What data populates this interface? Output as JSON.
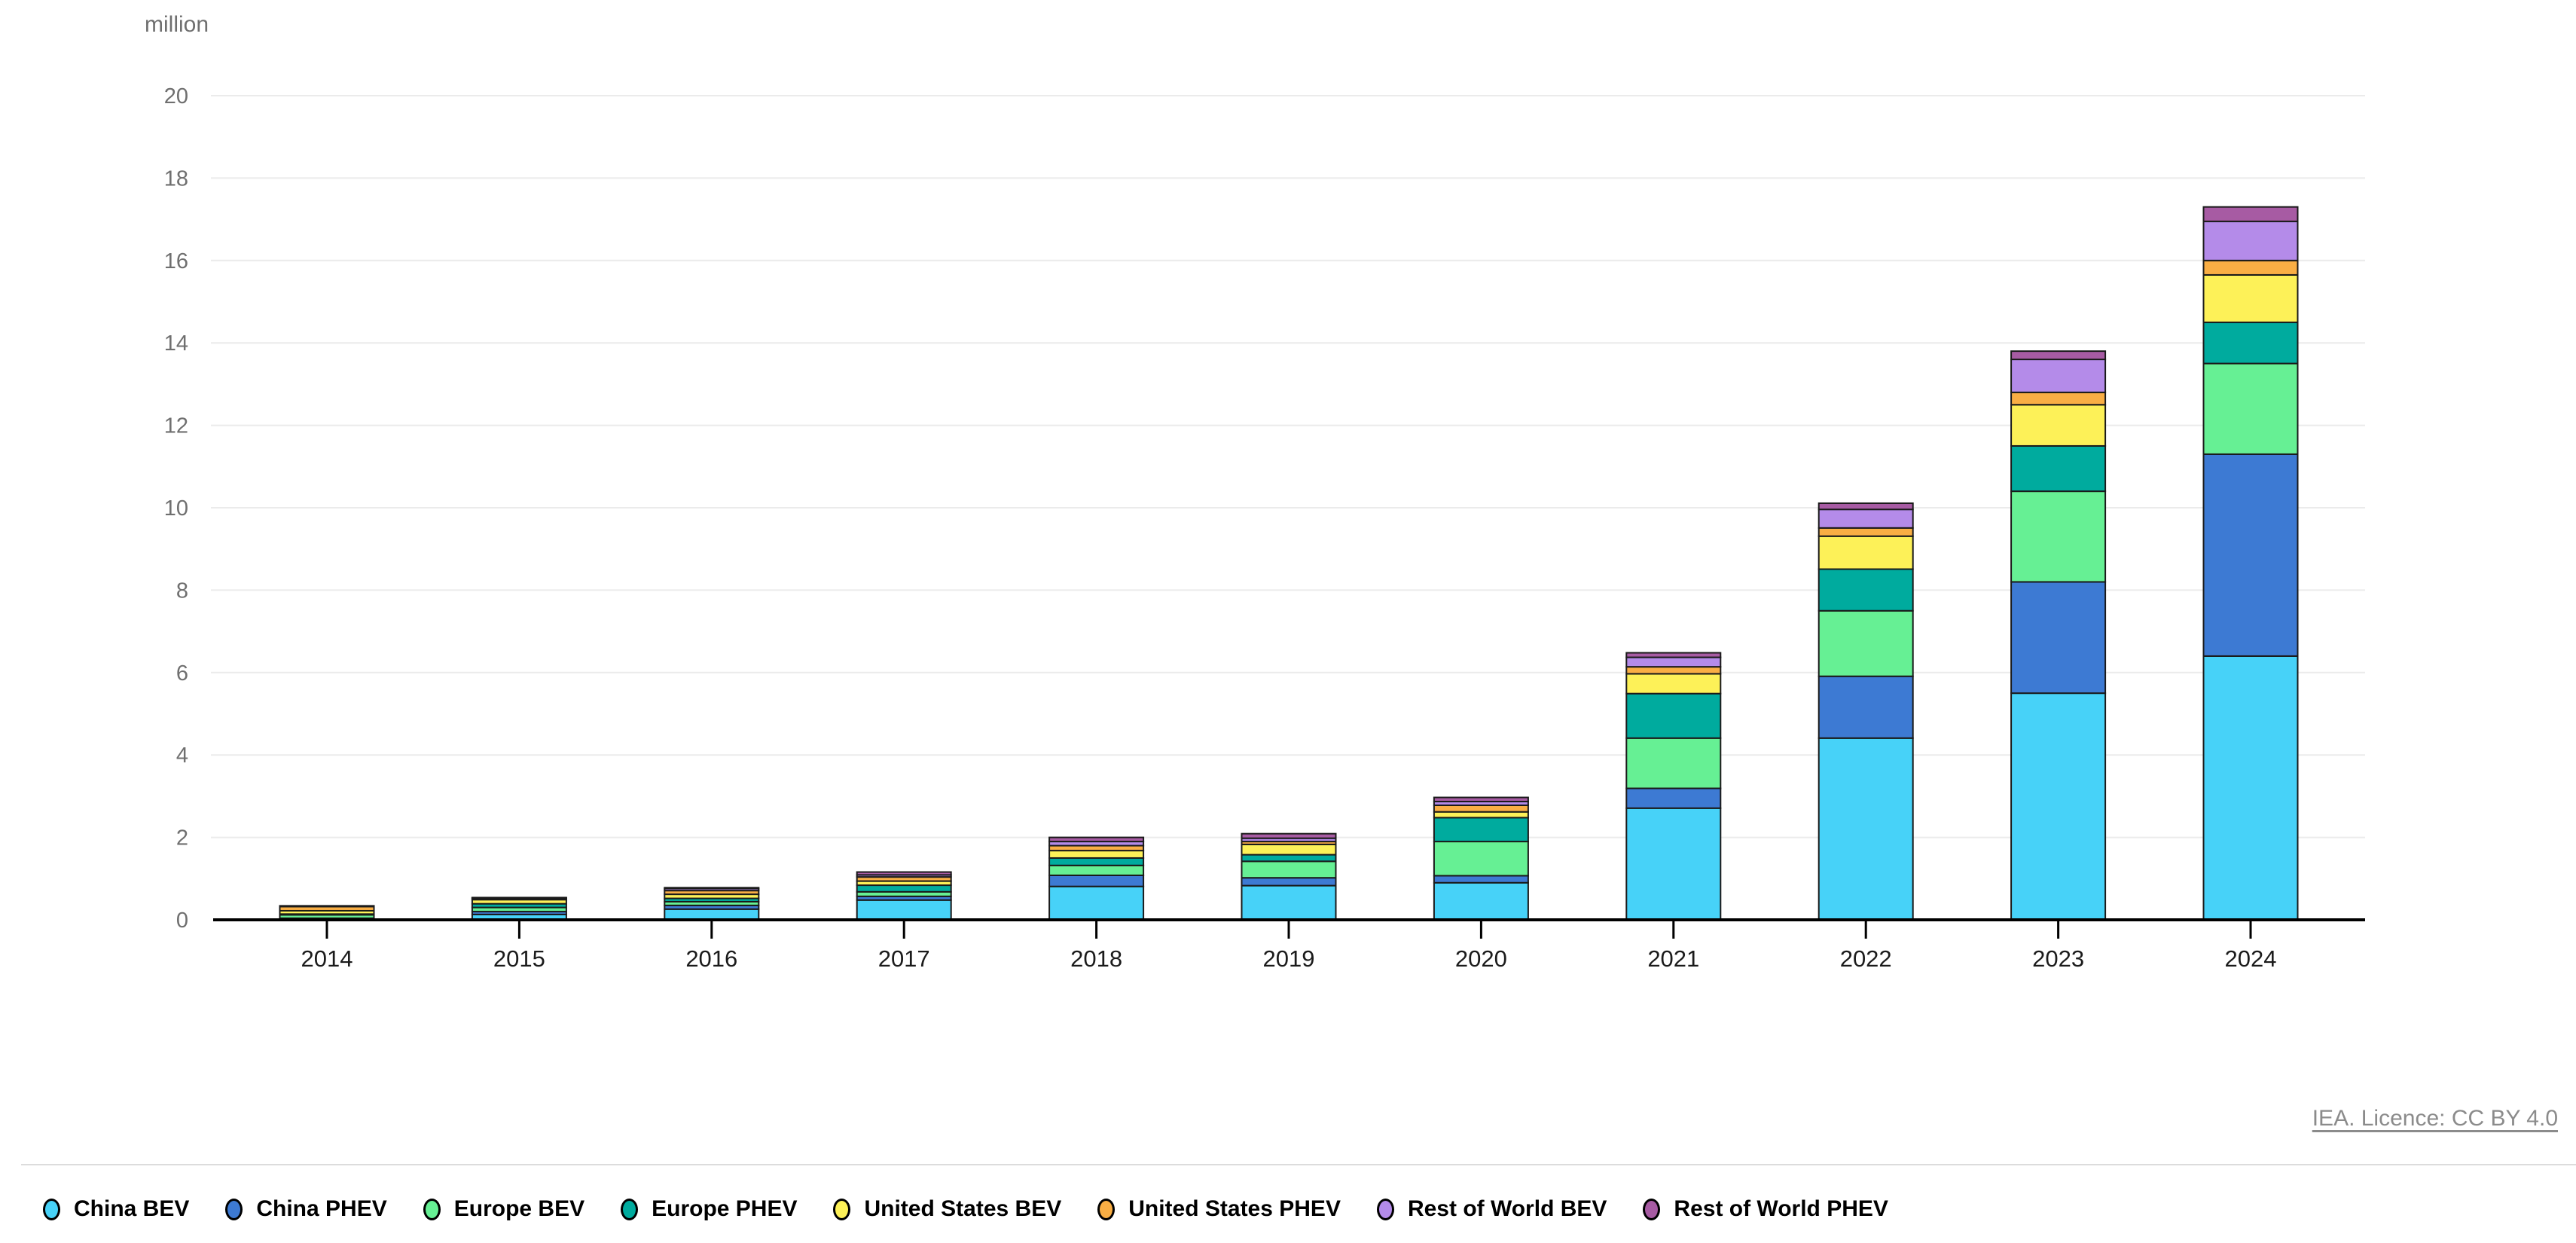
{
  "header": {
    "unit_label": "million"
  },
  "footer": {
    "licence_text": "IEA. Licence: CC BY 4.0"
  },
  "chart_data": {
    "type": "bar",
    "stacked": true,
    "title": "",
    "unit_label": "million",
    "categories": [
      "2014",
      "2015",
      "2016",
      "2017",
      "2018",
      "2019",
      "2020",
      "2021",
      "2022",
      "2023",
      "2024"
    ],
    "series": [
      {
        "name": "China BEV",
        "color": "#47D2F8",
        "values": [
          0.03,
          0.13,
          0.26,
          0.48,
          0.81,
          0.83,
          0.9,
          2.71,
          4.41,
          5.5,
          6.4
        ]
      },
      {
        "name": "China PHEV",
        "color": "#3D7AD3",
        "values": [
          0.01,
          0.07,
          0.09,
          0.09,
          0.27,
          0.19,
          0.17,
          0.48,
          1.5,
          2.7,
          4.9
        ]
      },
      {
        "name": "Europe BEV",
        "color": "#66F094",
        "values": [
          0.08,
          0.1,
          0.09,
          0.11,
          0.24,
          0.4,
          0.83,
          1.22,
          1.59,
          2.2,
          2.2
        ]
      },
      {
        "name": "Europe PHEV",
        "color": "#00AB9E",
        "values": [
          0.02,
          0.09,
          0.08,
          0.16,
          0.18,
          0.16,
          0.58,
          1.08,
          1.01,
          1.1,
          1.0
        ]
      },
      {
        "name": "United States BEV",
        "color": "#FDF158",
        "values": [
          0.08,
          0.1,
          0.1,
          0.1,
          0.18,
          0.25,
          0.14,
          0.48,
          0.8,
          1.0,
          1.15
        ]
      },
      {
        "name": "United States PHEV",
        "color": "#F9AE44",
        "values": [
          0.1,
          0.03,
          0.09,
          0.1,
          0.12,
          0.07,
          0.16,
          0.17,
          0.2,
          0.3,
          0.35
        ]
      },
      {
        "name": "Rest of World BEV",
        "color": "#B48BE9",
        "values": [
          0.01,
          0.01,
          0.05,
          0.05,
          0.1,
          0.08,
          0.09,
          0.23,
          0.45,
          0.8,
          0.95
        ]
      },
      {
        "name": "Rest of World PHEV",
        "color": "#A75BA3",
        "values": [
          0.01,
          0.01,
          0.02,
          0.07,
          0.1,
          0.11,
          0.1,
          0.11,
          0.15,
          0.2,
          0.35
        ]
      }
    ],
    "xlabel": "",
    "ylabel": "million",
    "ylim": [
      0,
      20
    ],
    "ytick_step": 2,
    "grid": "horizontal",
    "gridline_color": "#EBEBEB",
    "axis_color": "#000000",
    "segment_stroke_color": "#1A1A1A",
    "ytick_label_color": "#6F6F6F",
    "xtick_label_color": "#1B1B1B",
    "legend_position": "bottom"
  }
}
